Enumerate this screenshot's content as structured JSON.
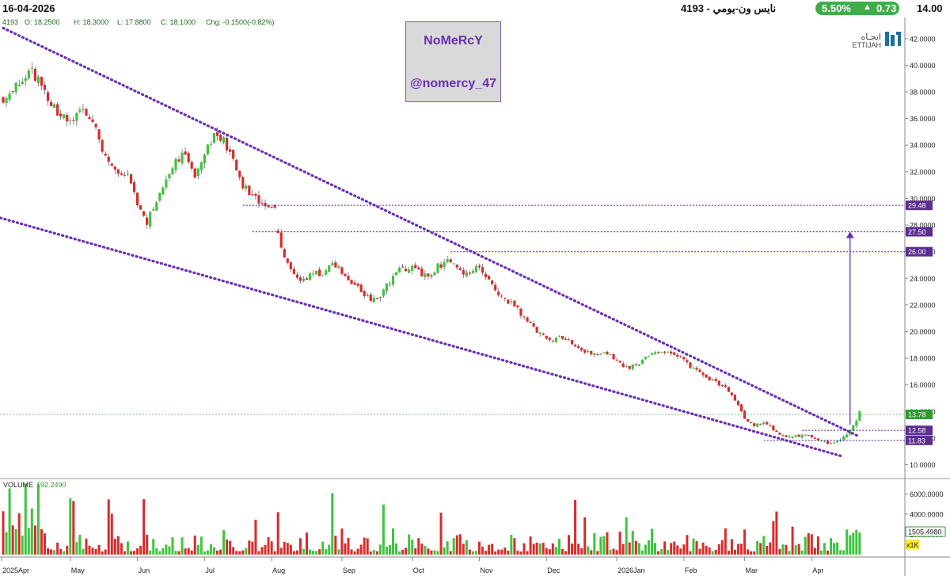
{
  "header": {
    "date": "16-04-2026",
    "title": "نايس ون-يومي  -  4193",
    "change_pct": "5.50%",
    "change_abs": "0.73",
    "last_price": "14.00",
    "up_color": "#3fae49"
  },
  "ohlc_legend": {
    "symbol": "4193",
    "open": "O: 18.2500",
    "high": "H: 18.3000",
    "low": "L: 17.8800",
    "close": "C: 18.1000",
    "change": "Chg: -0.1500(-0.82%)"
  },
  "watermark": {
    "line1": "NoMeRcY",
    "line2": "@nomercy_47",
    "text_color": "#6a2fb0"
  },
  "logo": {
    "arabic": "اتجـاه",
    "latin": "ETTIJAH"
  },
  "colors": {
    "up": "#3ec43e",
    "down": "#d92b2b",
    "trend": "#6a2fb0",
    "grid": "#ffffff",
    "last_line": "#2e9c2e"
  },
  "chart_data": [
    {
      "type": "candlestick",
      "title": "",
      "x_labels": [
        "2025Apr",
        "May",
        "Jun",
        "Jul",
        "Aug",
        "Sep",
        "Oct",
        "Nov",
        "Dec",
        "2026Jan",
        "Feb",
        "Mar",
        "Apr"
      ],
      "y_ticks": [
        "42.0000",
        "40.0000",
        "38.0000",
        "36.0000",
        "34.0000",
        "32.0000",
        "30.0000",
        "28.0000",
        "26.0000",
        "24.0000",
        "22.0000",
        "20.0000",
        "18.0000",
        "16.0000",
        "14.0000",
        "12.0000",
        "10.0000"
      ],
      "ylim": [
        9.2,
        43.0
      ],
      "close_path": [
        [
          0,
          37.2
        ],
        [
          5,
          38.6
        ],
        [
          9,
          39.6
        ],
        [
          13,
          38.0
        ],
        [
          17,
          36.5
        ],
        [
          21,
          35.6
        ],
        [
          25,
          36.8
        ],
        [
          29,
          35.3
        ],
        [
          32,
          33.0
        ],
        [
          36,
          32.0
        ],
        [
          39,
          31.6
        ],
        [
          42,
          29.5
        ],
        [
          45,
          28.2
        ],
        [
          49,
          30.4
        ],
        [
          53,
          32.5
        ],
        [
          56,
          33.4
        ],
        [
          60,
          31.8
        ],
        [
          63,
          33.6
        ],
        [
          66,
          34.8
        ],
        [
          69,
          34.3
        ],
        [
          72,
          32.8
        ],
        [
          75,
          31.0
        ],
        [
          78,
          30.1
        ],
        [
          81,
          29.7
        ],
        [
          84,
          29.5
        ],
        [
          86,
          27.3
        ],
        [
          88,
          25.4
        ],
        [
          91,
          24.1
        ],
        [
          94,
          23.8
        ],
        [
          97,
          24.4
        ],
        [
          100,
          24.2
        ],
        [
          103,
          25.3
        ],
        [
          106,
          24.4
        ],
        [
          109,
          23.8
        ],
        [
          112,
          23.0
        ],
        [
          115,
          22.3
        ],
        [
          118,
          22.8
        ],
        [
          121,
          23.8
        ],
        [
          124,
          24.6
        ],
        [
          127,
          24.8
        ],
        [
          130,
          24.5
        ],
        [
          133,
          24.0
        ],
        [
          136,
          24.9
        ],
        [
          139,
          25.2
        ],
        [
          142,
          24.8
        ],
        [
          145,
          24.3
        ],
        [
          148,
          24.8
        ],
        [
          151,
          24.2
        ],
        [
          154,
          23.2
        ],
        [
          157,
          22.4
        ],
        [
          160,
          21.9
        ],
        [
          163,
          21.1
        ],
        [
          166,
          20.3
        ],
        [
          169,
          19.6
        ],
        [
          172,
          19.4
        ],
        [
          175,
          19.5
        ],
        [
          178,
          19.1
        ],
        [
          181,
          18.6
        ],
        [
          184,
          18.4
        ],
        [
          187,
          18.5
        ],
        [
          190,
          18.2
        ],
        [
          193,
          17.6
        ],
        [
          196,
          17.3
        ],
        [
          199,
          17.6
        ],
        [
          202,
          18.2
        ],
        [
          205,
          18.4
        ],
        [
          208,
          18.5
        ],
        [
          211,
          18.2
        ],
        [
          214,
          17.6
        ],
        [
          217,
          17.0
        ],
        [
          220,
          16.5
        ],
        [
          223,
          16.2
        ],
        [
          226,
          15.9
        ],
        [
          229,
          14.9
        ],
        [
          232,
          13.5
        ],
        [
          235,
          12.9
        ],
        [
          238,
          13.1
        ],
        [
          241,
          12.7
        ],
        [
          244,
          12.2
        ],
        [
          247,
          12.0
        ],
        [
          250,
          12.3
        ],
        [
          253,
          12.1
        ],
        [
          256,
          11.8
        ],
        [
          259,
          11.6
        ],
        [
          262,
          11.9
        ],
        [
          265,
          12.5
        ],
        [
          268,
          13.9
        ]
      ],
      "trendlines": [
        {
          "from": [
            0,
            42.8
          ],
          "to": [
            268,
            12.1
          ]
        },
        {
          "from": [
            -15,
            29.5
          ],
          "to": [
            263,
            10.6
          ]
        }
      ],
      "levels": [
        {
          "value": 29.48,
          "label": "29.48",
          "from_x": 75,
          "box": "#6a2fb0"
        },
        {
          "value": 27.5,
          "label": "27.50",
          "from_x": 78,
          "box": "#6a2fb0"
        },
        {
          "value": 26.0,
          "label": "26.00",
          "from_x": 140,
          "box": "#6a2fb0"
        },
        {
          "value": 13.78,
          "label": "13.78",
          "from_x": -20,
          "box": "#2e9c2e"
        },
        {
          "value": 12.58,
          "label": "12.58",
          "from_x": 250,
          "box": "#6a2fb0"
        },
        {
          "value": 11.83,
          "label": "11.83",
          "from_x": 238,
          "box": "#6a2fb0"
        }
      ],
      "target_arrow": {
        "x": 265,
        "from": 13.0,
        "to": 27.5
      }
    },
    {
      "type": "bar",
      "title": "VOLUME",
      "last_value": "192.2490",
      "marker_label": "1505.4980",
      "unit_label": "x1K",
      "y_ticks": [
        "6000.0000",
        "4000.0000",
        "2000.0000"
      ],
      "ylim": [
        0,
        7200
      ]
    }
  ]
}
